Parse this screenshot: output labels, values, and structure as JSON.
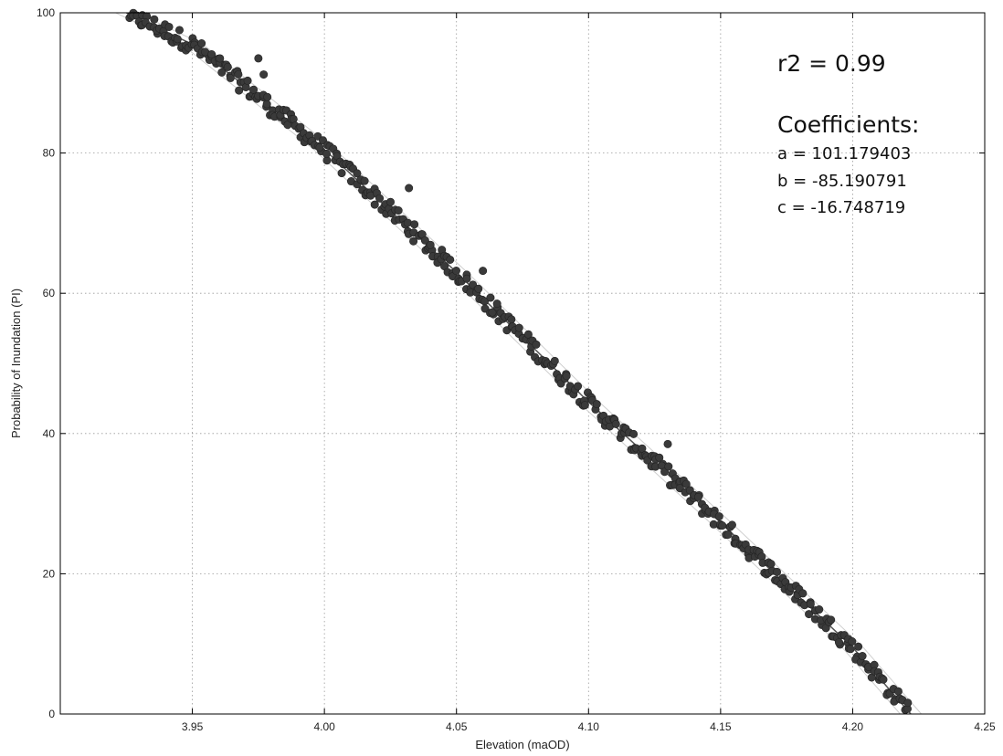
{
  "chart_data": {
    "type": "scatter",
    "title": "",
    "xlabel": "Elevation (maOD)",
    "ylabel": "Probability of Inundation (PI)",
    "xlim": [
      3.9,
      4.25
    ],
    "ylim": [
      0,
      100
    ],
    "xticks": [
      3.95,
      4.0,
      4.05,
      4.1,
      4.15,
      4.2,
      4.25
    ],
    "xtick_labels": [
      "3.95",
      "4.00",
      "4.05",
      "4.10",
      "4.15",
      "4.20",
      "4.25"
    ],
    "yticks": [
      0,
      20,
      40,
      60,
      80,
      100
    ],
    "ytick_labels": [
      "0",
      "20",
      "40",
      "60",
      "80",
      "100"
    ],
    "grid": true,
    "marker_color": "#3a3a3a",
    "line_color": "#555555",
    "annotations": {
      "r2": "r2 = 0.99",
      "coef_title": "Coefficients:",
      "a": "a = 101.179403",
      "b": "b = -85.190791",
      "c": "c = -16.748719"
    },
    "fit_line": {
      "x": [
        3.925,
        3.95,
        4.0,
        4.05,
        4.1,
        4.15,
        4.2,
        4.222
      ],
      "y": [
        100,
        95.5,
        80.5,
        63.0,
        44.5,
        27.3,
        9.5,
        0
      ]
    },
    "outliers": [
      {
        "x": 3.975,
        "y": 93.5
      },
      {
        "x": 3.977,
        "y": 91.2
      },
      {
        "x": 4.032,
        "y": 75.0
      },
      {
        "x": 4.06,
        "y": 63.2
      },
      {
        "x": 4.13,
        "y": 38.5
      }
    ]
  }
}
